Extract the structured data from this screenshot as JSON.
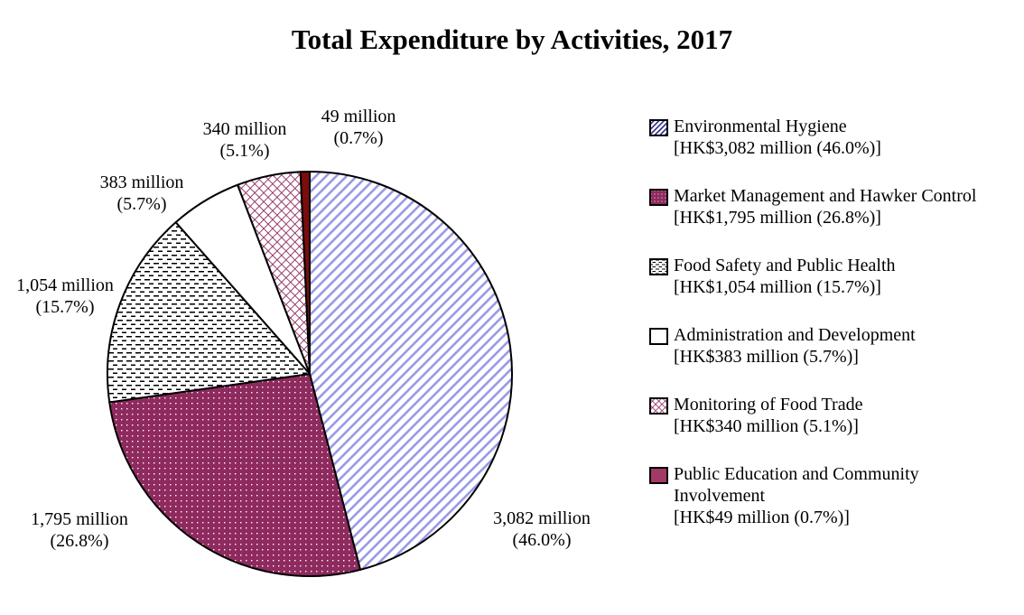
{
  "chart_data": {
    "type": "pie",
    "title": "Total Expenditure by Activities, 2017",
    "unit": "HK$ million",
    "start_angle_deg": 0,
    "direction": "clockwise",
    "slices": [
      {
        "name": "Environmental Hygiene",
        "name_lines": [
          "Environmental Hygiene"
        ],
        "value": 3082,
        "percent": 46.0,
        "label_line1": "3,082 million",
        "label_line2": "(46.0%)",
        "legend_detail": "[HK$3,082 million (46.0%)]",
        "pattern": "diagonal-stripes",
        "color": "#9999e6"
      },
      {
        "name": "Market Management and Hawker Control",
        "name_lines": [
          "Market Management and Hawker Control"
        ],
        "value": 1795,
        "percent": 26.8,
        "label_line1": "1,795 million",
        "label_line2": "(26.8%)",
        "legend_detail": "[HK$1,795 million (26.8%)]",
        "pattern": "dots",
        "color": "#8e2a5e"
      },
      {
        "name": "Food Safety and Public Health",
        "name_lines": [
          "Food Safety and Public Health"
        ],
        "value": 1054,
        "percent": 15.7,
        "label_line1": "1,054 million",
        "label_line2": "(15.7%)",
        "legend_detail": "[HK$1,054 million (15.7%)]",
        "pattern": "dashes",
        "color": "#000000"
      },
      {
        "name": "Administration and Development",
        "name_lines": [
          "Administration and Development"
        ],
        "value": 383,
        "percent": 5.7,
        "label_line1": "383 million",
        "label_line2": "(5.7%)",
        "legend_detail": "[HK$383 million (5.7%)]",
        "pattern": "none",
        "color": "#ffffff"
      },
      {
        "name": "Monitoring of Food Trade",
        "name_lines": [
          "Monitoring of Food Trade"
        ],
        "value": 340,
        "percent": 5.1,
        "label_line1": "340 million",
        "label_line2": "(5.1%)",
        "legend_detail": "[HK$340 million (5.1%)]",
        "pattern": "crosshatch",
        "color": "#8e2a5e"
      },
      {
        "name": "Public Education and Community Involvement",
        "name_lines": [
          "Public Education and Community",
          "Involvement"
        ],
        "value": 49,
        "percent": 0.7,
        "label_line1": "49 million",
        "label_line2": "(0.7%)",
        "legend_detail": "[HK$49 million (0.7%)]",
        "pattern": "solid",
        "color": "#7b0d0d",
        "legend_color": "#a23a68"
      }
    ],
    "legend_position": "right"
  }
}
